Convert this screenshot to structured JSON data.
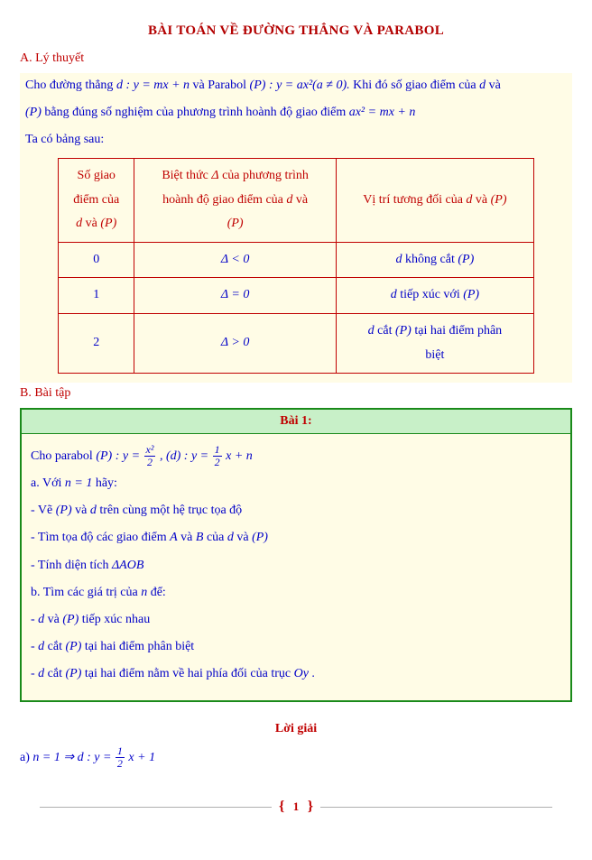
{
  "title": "BÀI TOÁN VỀ ĐƯỜNG THẲNG VÀ PARABOL",
  "secA": "A. Lý thuyết",
  "theory": {
    "l1a": "Cho đường thẳng ",
    "l1b": " và Parabol ",
    "l1c": " Khi đó số giao điểm của ",
    "l1d": " và",
    "l2a": " bằng đúng số nghiệm của phương trình hoành độ giao điểm ",
    "l3": "Ta có bảng sau:"
  },
  "eq": {
    "d": "d : y = mx + n",
    "p": "(P) : y = ax²(a ≠ 0).",
    "inter": "ax² = mx + n",
    "d_sym": "d",
    "p_sym": "(P)",
    "delta": "Δ",
    "lt": "Δ < 0",
    "eq0": "Δ = 0",
    "gt": "Δ > 0",
    "dsym2": "d",
    "AOB": "ΔAOB",
    "Oy": "Oy"
  },
  "table": {
    "h1a": "Số giao",
    "h1b": "điểm của",
    "h1c_a": "d",
    "h1c_mid": " và ",
    "h1c_b": "(P)",
    "h2a": "Biệt thức ",
    "h2b": " của phương trình",
    "h2c": "hoành độ giao điểm của ",
    "h2d": " và",
    "h3": "Vị trí tương đối của ",
    "r1c1": "0",
    "r1c3a": " không cắt ",
    "r2c1": "1",
    "r2c3a": " tiếp xúc với ",
    "r3c1": "2",
    "r3c3a": " cắt ",
    "r3c3b": " tại hai điểm phân",
    "r3c3c": "biệt"
  },
  "secB": "B. Bài tập",
  "ex": {
    "header": "Bài 1:",
    "l1a": "Cho parabol",
    "l1b": "(P) : y = ",
    "l1c": ", (d) : y = ",
    "l1d": "x + n",
    "l2a": "a. Với ",
    "l2b": "n = 1",
    "l2c": " hãy:",
    "l3a": "- Vẽ ",
    "l3b": " và ",
    "l3c": " trên cùng một hệ trục tọa độ",
    "l4a": "- Tìm tọa độ các giao điểm ",
    "l4A": "A",
    "l4b": " và ",
    "l4B": "B",
    "l4c": " của ",
    "l5": " - Tính diện tích ",
    "l6a": "b. Tìm các giá trị của ",
    "l6n": "n",
    "l6b": " để:",
    "l7a": "- ",
    "l7b": " tiếp xúc nhau",
    "l8b": " tại hai điểm phân biệt",
    "l9b": " tại hai điểm nằm về hai phía đối của trục ",
    "period": " ."
  },
  "sol": {
    "head": "Lời giải",
    "a1": "a) ",
    "a2": "n = 1 ⇒ d : y = ",
    "a3": "x + 1"
  },
  "frac": {
    "x2": "x²",
    "two": "2",
    "one": "1"
  },
  "page": "1",
  "colors": {
    "red": "#c00000",
    "blue": "#0000c8",
    "bg": "#fffce6",
    "green_border": "#1a8a1a",
    "green_bg": "#c8f0c8"
  }
}
